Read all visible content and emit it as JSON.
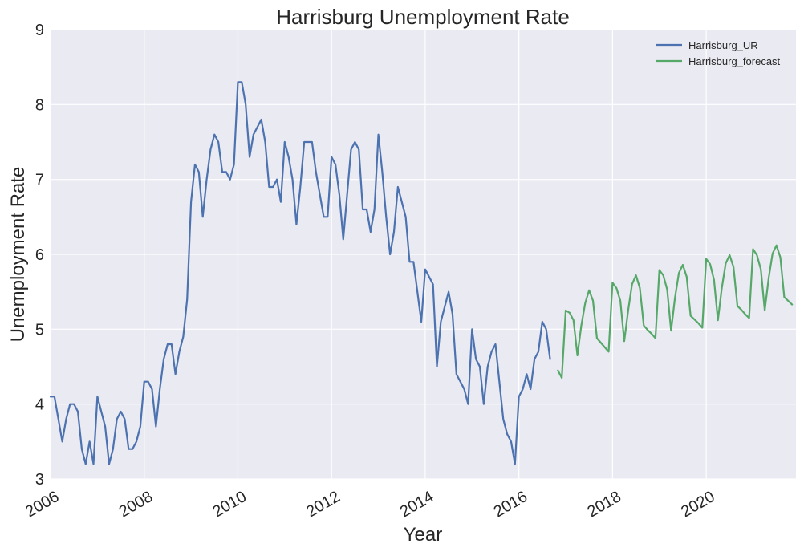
{
  "chart_data": {
    "type": "line",
    "title": "Harrisburg Unemployment Rate",
    "xlabel": "Year",
    "ylabel": "Unemployment Rate",
    "xlim": [
      2006.0,
      2021.917
    ],
    "ylim": [
      3,
      9
    ],
    "x_ticks": [
      "2006",
      "2008",
      "2010",
      "2012",
      "2014",
      "2016",
      "2018",
      "2020"
    ],
    "y_ticks": [
      "3",
      "4",
      "5",
      "6",
      "7",
      "8",
      "9"
    ],
    "grid": true,
    "legend_position": "top-right",
    "series": [
      {
        "name": "Harrisburg_UR",
        "color": "#4c72b0",
        "start": "2006-01",
        "frequency": "monthly",
        "values": [
          4.1,
          4.1,
          3.8,
          3.5,
          3.8,
          4.0,
          4.0,
          3.9,
          3.4,
          3.2,
          3.5,
          3.2,
          4.1,
          3.9,
          3.7,
          3.2,
          3.4,
          3.8,
          3.9,
          3.8,
          3.4,
          3.4,
          3.5,
          3.7,
          4.3,
          4.3,
          4.2,
          3.7,
          4.2,
          4.6,
          4.8,
          4.8,
          4.4,
          4.7,
          4.9,
          5.4,
          6.7,
          7.2,
          7.1,
          6.5,
          7.0,
          7.4,
          7.6,
          7.5,
          7.1,
          7.1,
          7.0,
          7.2,
          8.3,
          8.3,
          8.0,
          7.3,
          7.6,
          7.7,
          7.8,
          7.5,
          6.9,
          6.9,
          7.0,
          6.7,
          7.5,
          7.3,
          7.0,
          6.4,
          6.9,
          7.5,
          7.5,
          7.5,
          7.1,
          6.8,
          6.5,
          6.5,
          7.3,
          7.2,
          6.8,
          6.2,
          6.8,
          7.4,
          7.5,
          7.4,
          6.6,
          6.6,
          6.3,
          6.6,
          7.6,
          7.1,
          6.5,
          6.0,
          6.3,
          6.9,
          6.7,
          6.5,
          5.9,
          5.9,
          5.5,
          5.1,
          5.8,
          5.7,
          5.6,
          4.5,
          5.1,
          5.3,
          5.5,
          5.2,
          4.4,
          4.3,
          4.2,
          4.0,
          5.0,
          4.6,
          4.5,
          4.0,
          4.5,
          4.7,
          4.8,
          4.3,
          3.8,
          3.6,
          3.5,
          3.2,
          4.1,
          4.2,
          4.4,
          4.2,
          4.6,
          4.7,
          5.1,
          5.0,
          4.6
        ]
      },
      {
        "name": "Harrisburg_forecast",
        "color": "#55a868",
        "start": "2016-11",
        "frequency": "monthly",
        "values": [
          4.45,
          4.35,
          5.25,
          5.22,
          5.12,
          4.65,
          5.05,
          5.35,
          5.52,
          5.38,
          4.88,
          4.82,
          4.76,
          4.7,
          5.62,
          5.55,
          5.38,
          4.84,
          5.25,
          5.6,
          5.72,
          5.55,
          5.05,
          4.99,
          4.94,
          4.88,
          5.79,
          5.72,
          5.53,
          4.98,
          5.42,
          5.75,
          5.86,
          5.7,
          5.18,
          5.13,
          5.08,
          5.02,
          5.94,
          5.87,
          5.66,
          5.12,
          5.55,
          5.88,
          5.99,
          5.83,
          5.31,
          5.26,
          5.2,
          5.15,
          6.07,
          5.99,
          5.8,
          5.25,
          5.68,
          6.01,
          6.12,
          5.96,
          5.43,
          5.38,
          5.33
        ]
      }
    ]
  }
}
